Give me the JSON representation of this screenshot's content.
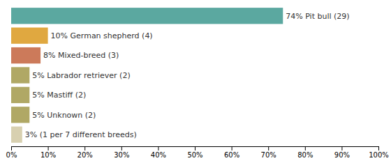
{
  "chart_data": {
    "type": "bar",
    "orientation": "horizontal",
    "categories": [
      "3% (1 per 7 different breeds)",
      "5% Unknown (2)",
      "5% Mastiff (2)",
      "5% Labrador retriever (2)",
      "8% Mixed-breed (3)",
      "10% German shepherd (4)",
      "74% Pit bull (29)"
    ],
    "values": [
      3,
      5,
      5,
      5,
      8,
      10,
      74
    ],
    "colors": [
      "#d8d0b0",
      "#b0a865",
      "#b0a865",
      "#b0a865",
      "#cc7a5a",
      "#e0a840",
      "#5ba8a0"
    ],
    "xlim": [
      0,
      100
    ],
    "xticks": [
      {
        "value": 0,
        "label": "0%"
      },
      {
        "value": 10,
        "label": "10%"
      },
      {
        "value": 20,
        "label": "20%"
      },
      {
        "value": 30,
        "label": "30%"
      },
      {
        "value": 40,
        "label": "40%"
      },
      {
        "value": 50,
        "label": "50%"
      },
      {
        "value": 60,
        "label": "60%"
      },
      {
        "value": 70,
        "label": "70%"
      },
      {
        "value": 80,
        "label": "80%"
      },
      {
        "value": 90,
        "label": "90%"
      },
      {
        "value": 100,
        "label": "100%"
      }
    ],
    "tick_labels": "x",
    "grid": false
  }
}
